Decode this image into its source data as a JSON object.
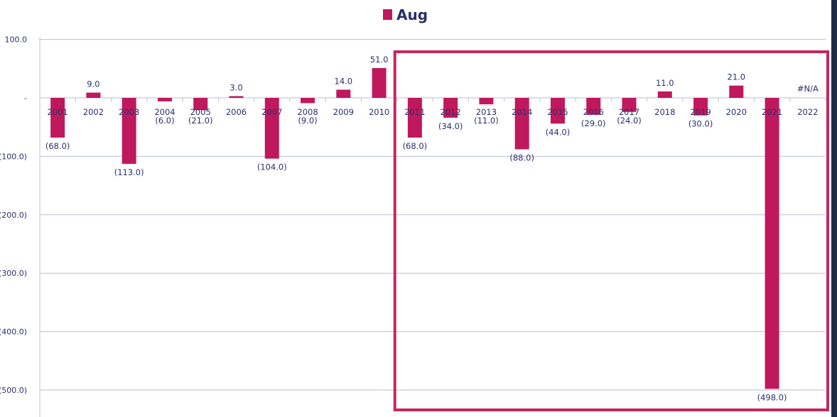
{
  "chart_data": {
    "type": "bar",
    "series": [
      {
        "name": "Aug",
        "values": [
          -68,
          9,
          -113,
          -6,
          -21,
          3,
          -104,
          -9,
          14,
          51,
          -68,
          -34,
          -11,
          -88,
          -44,
          -29,
          -24,
          11,
          -30,
          21,
          -498,
          null
        ]
      }
    ],
    "categories": [
      "2001",
      "2002",
      "2003",
      "2004",
      "2005",
      "2006",
      "2007",
      "2008",
      "2009",
      "2010",
      "2011",
      "2012",
      "2013",
      "2014",
      "2015",
      "2016",
      "2017",
      "2018",
      "2019",
      "2020",
      "2021",
      "2022"
    ],
    "data_labels": [
      "(68.0)",
      "9.0",
      "(113.0)",
      "(6.0)",
      "(21.0)",
      "3.0",
      "(104.0)",
      "(9.0)",
      "14.0",
      "51.0",
      "(68.0)",
      "(34.0)",
      "(11.0)",
      "(88.0)",
      "(44.0)",
      "(29.0)",
      "(24.0)",
      "11.0",
      "(30.0)",
      "21.0",
      "(498.0)",
      "#N/A"
    ],
    "y_ticks": [
      100,
      0,
      -100,
      -200,
      -300,
      -400,
      -500
    ],
    "y_tick_labels": [
      "100.0",
      "-",
      "(100.0)",
      "(200.0)",
      "(300.0)",
      "(400.0)",
      "(500.0)"
    ],
    "ylim": [
      -520,
      100
    ],
    "grid": true,
    "legend": "top-center",
    "highlight_range": [
      "2011",
      "2022"
    ],
    "colors": {
      "bar": "#c0185c",
      "highlight_border": "#c4285e",
      "gridline": "#b9bed8",
      "text": "#2a2f6b"
    }
  }
}
